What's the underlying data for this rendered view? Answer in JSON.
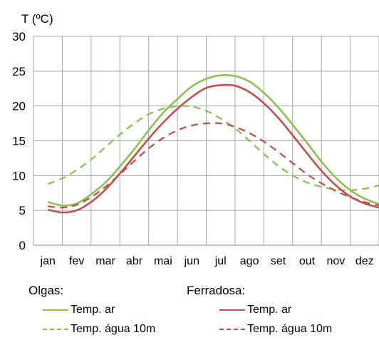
{
  "chart_data": {
    "type": "line",
    "ylabel": "T (ºC)",
    "xlabel": "",
    "ylim": [
      0,
      30
    ],
    "yticks": [
      "0",
      "5",
      "10",
      "15",
      "20",
      "25",
      "30"
    ],
    "categories": [
      "jan",
      "fev",
      "mar",
      "abr",
      "mai",
      "jun",
      "jul",
      "ago",
      "set",
      "out",
      "nov",
      "dez"
    ],
    "grid": true,
    "legend_position": "bottom",
    "legend_groups": [
      "Olgas:",
      "Ferradosa:"
    ],
    "series": [
      {
        "name": "Temp. ar",
        "group": "Olgas:",
        "color": "#8cc152",
        "dash": "solid",
        "x": [
          0.0,
          0.5,
          1.0,
          1.5,
          2.0,
          2.5,
          3.0,
          3.5,
          4.0,
          4.5,
          5.0,
          5.5,
          6.0,
          6.5,
          7.0,
          7.5,
          8.0,
          8.5,
          9.0,
          9.5,
          10.0,
          10.5,
          11.0,
          11.5
        ],
        "y": [
          6.2,
          5.7,
          6.0,
          7.3,
          9.0,
          11.3,
          13.8,
          16.5,
          19.0,
          21.0,
          22.8,
          23.9,
          24.4,
          24.3,
          23.5,
          21.9,
          19.8,
          17.3,
          14.7,
          12.0,
          9.7,
          7.9,
          6.7,
          5.9
        ]
      },
      {
        "name": "Temp. água 10m",
        "group": "Olgas:",
        "color": "#8cc152",
        "dash": "dashed",
        "x": [
          0.0,
          0.5,
          1.0,
          1.5,
          2.0,
          2.5,
          3.0,
          3.5,
          4.0,
          4.5,
          5.0,
          5.5,
          6.0,
          6.5,
          7.0,
          7.5,
          8.0,
          8.5,
          9.0,
          9.5,
          10.0,
          10.5,
          11.0,
          11.5
        ],
        "y": [
          8.8,
          9.6,
          10.8,
          12.3,
          14.1,
          15.9,
          17.5,
          18.8,
          19.6,
          20.0,
          19.9,
          19.3,
          18.2,
          16.8,
          15.0,
          13.1,
          11.4,
          10.0,
          9.0,
          8.4,
          8.0,
          7.9,
          8.1,
          8.6
        ]
      },
      {
        "name": "Temp. ar",
        "group": "Ferradosa:",
        "color": "#c0504d",
        "dash": "solid",
        "x": [
          0.0,
          0.5,
          1.0,
          1.5,
          2.0,
          2.5,
          3.0,
          3.5,
          4.0,
          4.5,
          5.0,
          5.5,
          6.0,
          6.5,
          7.0,
          7.5,
          8.0,
          8.5,
          9.0,
          9.5,
          10.0,
          10.5,
          11.0,
          11.5
        ],
        "y": [
          5.1,
          4.7,
          5.0,
          6.2,
          8.0,
          10.3,
          12.8,
          15.3,
          17.6,
          19.6,
          21.3,
          22.6,
          23.0,
          22.9,
          22.0,
          20.4,
          18.3,
          15.8,
          13.2,
          10.7,
          8.6,
          7.0,
          6.0,
          5.4
        ]
      },
      {
        "name": "Temp. água 10m",
        "group": "Ferradosa:",
        "color": "#c0504d",
        "dash": "dashed",
        "x": [
          0.0,
          0.5,
          1.0,
          1.5,
          2.0,
          2.5,
          3.0,
          3.5,
          4.0,
          4.5,
          5.0,
          5.5,
          6.0,
          6.5,
          7.0,
          7.5,
          8.0,
          8.5,
          9.0,
          9.5,
          10.0,
          10.5,
          11.0,
          11.5
        ],
        "y": [
          5.6,
          5.4,
          5.8,
          6.9,
          8.4,
          10.2,
          12.1,
          13.9,
          15.4,
          16.5,
          17.2,
          17.5,
          17.5,
          17.0,
          16.1,
          14.9,
          13.4,
          11.8,
          10.2,
          8.9,
          7.8,
          6.9,
          6.2,
          5.7
        ]
      }
    ]
  }
}
